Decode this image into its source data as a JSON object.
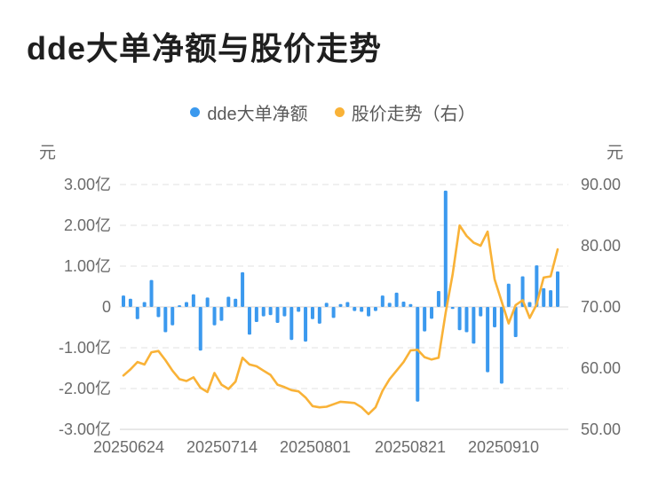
{
  "title": "dde大单净额与股价走势",
  "legend": [
    {
      "label": "dde大单净额",
      "color": "#3b99ee",
      "marker": "circle"
    },
    {
      "label": "股价走势（右）",
      "color": "#f9b237",
      "marker": "circle"
    }
  ],
  "left_axis": {
    "unit": "元",
    "ticks": [
      "3.00亿",
      "2.00亿",
      "1.00亿",
      "0",
      "-1.00亿",
      "-2.00亿",
      "-3.00亿"
    ]
  },
  "right_axis": {
    "unit": "元",
    "ticks": [
      "90.00",
      "80.00",
      "70.00",
      "60.00",
      "50.00"
    ]
  },
  "x_axis": {
    "labels": [
      "20250624",
      "20250714",
      "20250801",
      "20250821",
      "20250910"
    ]
  },
  "chart_data": {
    "type": "bar",
    "combo": [
      "bar",
      "line"
    ],
    "title": "dde大单净额与股价走势",
    "grid": "dashed-horizontal",
    "legend_position": "top-center",
    "left_ylim": [
      -3.0,
      3.0
    ],
    "left_unit": "亿元",
    "right_ylim": [
      50.0,
      90.0
    ],
    "right_unit": "元",
    "x_tick_labels": [
      "20250624",
      "20250714",
      "20250801",
      "20250821",
      "20250910"
    ],
    "x_tick_indices": [
      0,
      14,
      28,
      42,
      56
    ],
    "series": [
      {
        "name": "dde大单净额",
        "type": "bar",
        "axis": "left",
        "unit": "亿",
        "color": "#3b99ee",
        "values": [
          0.28,
          0.2,
          -0.3,
          0.12,
          0.66,
          -0.25,
          -0.62,
          -0.45,
          0.04,
          0.12,
          0.31,
          -1.07,
          0.23,
          -0.45,
          -0.34,
          0.25,
          0.2,
          0.85,
          -0.68,
          -0.37,
          -0.23,
          -0.2,
          -0.39,
          -0.23,
          -0.81,
          -0.12,
          -0.85,
          -0.3,
          -0.41,
          0.1,
          -0.27,
          0.07,
          0.12,
          -0.1,
          -0.12,
          -0.23,
          -0.1,
          0.28,
          0.1,
          0.35,
          0.13,
          0.07,
          -2.32,
          -0.6,
          -0.29,
          0.39,
          2.85,
          -0.05,
          -0.57,
          -0.62,
          -0.9,
          -0.23,
          -1.6,
          -0.5,
          -1.88,
          0.57,
          -0.74,
          0.75,
          0.12,
          1.02,
          0.46,
          0.41,
          0.87
        ]
      },
      {
        "name": "股价走势（右）",
        "type": "line",
        "axis": "right",
        "unit": "元",
        "color": "#f9b237",
        "values": [
          58.8,
          59.8,
          61.0,
          60.6,
          62.6,
          62.8,
          61.3,
          59.6,
          58.2,
          57.9,
          58.5,
          56.8,
          56.1,
          59.2,
          57.3,
          56.6,
          57.8,
          61.7,
          60.6,
          60.3,
          59.6,
          58.9,
          57.3,
          56.9,
          56.4,
          56.2,
          55.2,
          53.8,
          53.6,
          53.7,
          54.1,
          54.5,
          54.4,
          54.3,
          53.6,
          52.5,
          53.6,
          56.3,
          58.2,
          59.6,
          61.0,
          62.9,
          63.0,
          61.8,
          61.4,
          61.7,
          69.0,
          75.3,
          83.3,
          81.6,
          80.5,
          80.0,
          82.3,
          74.5,
          70.9,
          67.3,
          70.3,
          71.1,
          68.2,
          70.4,
          74.8,
          75.0,
          79.4
        ]
      }
    ]
  },
  "colors": {
    "bar_blue": "#3b99ee",
    "line_orange": "#f9b237",
    "grid_line": "#ebebeb",
    "axis_line": "#e0e0e0",
    "axis_text": "#6b6b6b",
    "title_text": "#1f1f1f"
  }
}
